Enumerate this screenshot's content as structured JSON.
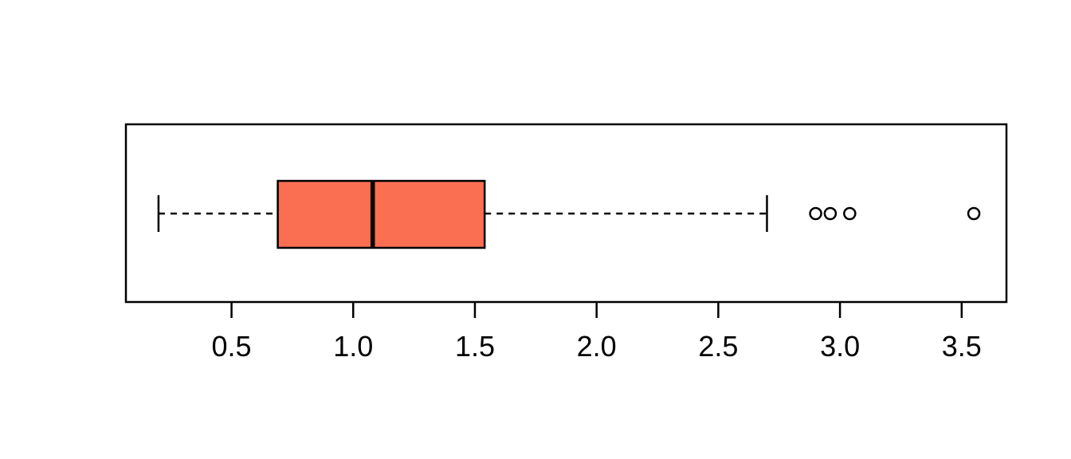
{
  "chart_data": {
    "type": "boxplot",
    "orientation": "horizontal",
    "title": "",
    "xlabel": "",
    "ylabel": "",
    "xlim": [
      0.066,
      3.684
    ],
    "grid": false,
    "legend": null,
    "x_ticks": [
      0.5,
      1.0,
      1.5,
      2.0,
      2.5,
      3.0,
      3.5
    ],
    "x_tick_labels": [
      "0.5",
      "1.0",
      "1.5",
      "2.0",
      "2.5",
      "3.0",
      "3.5"
    ],
    "box": {
      "whisker_min": 0.2,
      "q1": 0.69,
      "median": 1.08,
      "q3": 1.54,
      "whisker_max": 2.7
    },
    "outliers": [
      2.9,
      2.96,
      3.04,
      3.55
    ],
    "colors": {
      "box_fill": "#FA6E52",
      "line": "#000000",
      "background": "#FFFFFF"
    }
  }
}
